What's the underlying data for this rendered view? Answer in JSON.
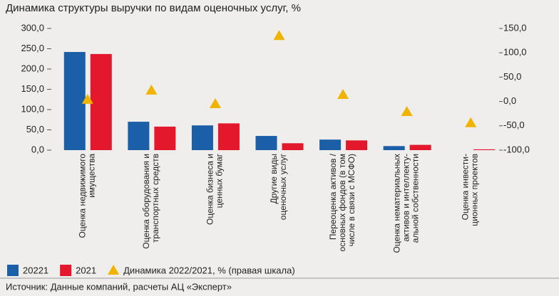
{
  "chart_data": {
    "type": "bar",
    "title": "Динамика структуры выручки по видам оценочных услуг, %",
    "categories": [
      "Оценка недвижимого\nимущества",
      "Оценка оборудования и\nтранспортных средств",
      "Оценка бизнеса и\nценных бумаг",
      "Другие виды\nоценочных услуг",
      "Переоценка активов /\nосновных фондов (в том\nчисле в связи с МСФО)",
      "Оценка нематериальных\nактивов и интеллекту-\nальной собственности",
      "Оценка инвести-\nционных проектов"
    ],
    "series": [
      {
        "name": "20221",
        "color": "#1a5fa8",
        "values": [
          242,
          70,
          61,
          35,
          26,
          10,
          0
        ]
      },
      {
        "name": "2021",
        "color": "#e3182d",
        "values": [
          237,
          58,
          66,
          17,
          24,
          13,
          2
        ]
      },
      {
        "name": "Динамика 2022/2021, % (правая шкала)",
        "color": "#f0b400",
        "axis": "y2",
        "marker": "triangle",
        "values": [
          4,
          23,
          -5,
          135,
          14,
          -21,
          -44
        ]
      }
    ],
    "ylim": [
      0,
      300
    ],
    "yticks": [
      {
        "value": 0,
        "label": "0,0"
      },
      {
        "value": 50,
        "label": "50,0"
      },
      {
        "value": 100,
        "label": "100,0"
      },
      {
        "value": 150,
        "label": "150,0"
      },
      {
        "value": 200,
        "label": "200,0"
      },
      {
        "value": 250,
        "label": "250,0"
      },
      {
        "value": 300,
        "label": "300,0"
      }
    ],
    "y2lim": [
      -100,
      150
    ],
    "y2ticks": [
      {
        "value": -100,
        "label": "-100,0"
      },
      {
        "value": -50,
        "label": "-50,0"
      },
      {
        "value": 0,
        "label": "0,0"
      },
      {
        "value": 50,
        "label": "50,0"
      },
      {
        "value": 100,
        "label": "100,0"
      },
      {
        "value": 150,
        "label": "150,0"
      }
    ],
    "source": "Источник: Данные компаний, расчеты АЦ «Эксперт»"
  }
}
